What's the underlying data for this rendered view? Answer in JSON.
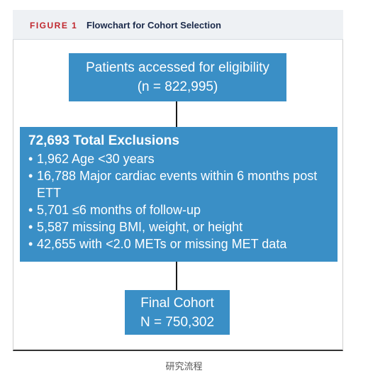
{
  "header": {
    "figure_label": "FIGURE 1",
    "title": "Flowchart for Cohort Selection"
  },
  "flowchart": {
    "top_node": {
      "line1": "Patients accessed for eligibility",
      "line2": "(n = 822,995)"
    },
    "exclusion_node": {
      "title": "72,693 Total Exclusions",
      "bullet_glyph": "•",
      "items": [
        "1,962 Age <30 years",
        "16,788 Major cardiac events within 6 months post ETT",
        "5,701 ≤6 months of follow-up",
        "5,587 missing BMI, weight, or height",
        "42,655 with <2.0 METs or missing MET data"
      ]
    },
    "final_node": {
      "line1": "Final Cohort",
      "line2": "N = 750,302"
    }
  },
  "caption": "研究流程",
  "colors": {
    "node_fill": "#3a8fc6",
    "header_bg": "#eef1f4",
    "figure_label": "#c0272d",
    "title_text": "#1b2a4a"
  }
}
